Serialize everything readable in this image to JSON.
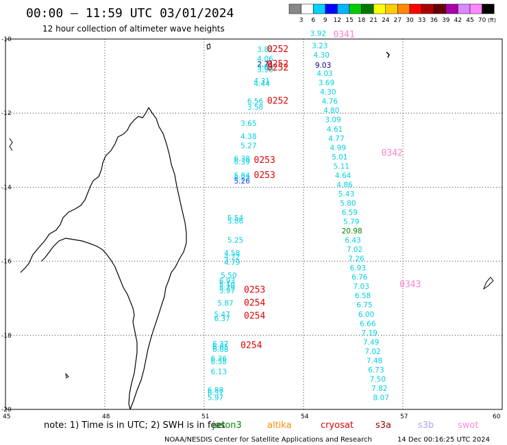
{
  "header": {
    "title": "00:00 – 11:59 UTC 03/01/2024",
    "subtitle": "12 hour collection of altimeter wave heights",
    "units": "(ft)"
  },
  "scale": {
    "labels": [
      "3",
      "6",
      "9",
      "12",
      "15",
      "18",
      "21",
      "24",
      "27",
      "30",
      "33",
      "36",
      "39",
      "42",
      "45",
      "70"
    ],
    "colors": [
      "#888888",
      "#ffffff",
      "#00d2ff",
      "#0000ff",
      "#00b4ff",
      "#00cc00",
      "#007700",
      "#ffff00",
      "#ffcc00",
      "#ff8800",
      "#ff0000",
      "#aa0000",
      "#660000",
      "#aa00aa",
      "#dd88ff",
      "#ff88ff",
      "#000000"
    ]
  },
  "map": {
    "lat_labels": [
      "-10",
      "-12",
      "-14",
      "-16",
      "-18",
      "-20"
    ],
    "lon_labels": [
      "45",
      "48",
      "51",
      "54",
      "57",
      "60"
    ],
    "lat_range": [
      -20,
      -10
    ],
    "lon_range": [
      45,
      60
    ],
    "grid": "dotted"
  },
  "passes": [
    {
      "id": "0252",
      "color": "#e00000",
      "lon": 52.9,
      "lat": -10.35
    },
    {
      "id": "0252",
      "color": "#e00000",
      "lon": 52.9,
      "lat": -10.75
    },
    {
      "id": "0252",
      "color": "#e00000",
      "lon": 52.9,
      "lat": -10.85
    },
    {
      "id": "0252",
      "color": "#e00000",
      "lon": 52.9,
      "lat": -11.75
    },
    {
      "id": "0253",
      "color": "#e00000",
      "lon": 52.5,
      "lat": -13.35
    },
    {
      "id": "0253",
      "color": "#e00000",
      "lon": 52.5,
      "lat": -13.75
    },
    {
      "id": "0253",
      "color": "#e00000",
      "lon": 52.2,
      "lat": -16.85
    },
    {
      "id": "0254",
      "color": "#e00000",
      "lon": 52.2,
      "lat": -17.2
    },
    {
      "id": "0254",
      "color": "#e00000",
      "lon": 52.2,
      "lat": -17.55
    },
    {
      "id": "0254",
      "color": "#e00000",
      "lon": 52.1,
      "lat": -18.35
    },
    {
      "id": "0341",
      "color": "#ff80cc",
      "lon": 54.9,
      "lat": -9.95
    },
    {
      "id": "0342",
      "color": "#ff80cc",
      "lon": 56.35,
      "lat": -13.15
    },
    {
      "id": "0343",
      "color": "#ff80cc",
      "lon": 56.9,
      "lat": -16.7
    }
  ],
  "obs_left": [
    {
      "v": "3.82",
      "lon": 52.6,
      "lat": -10.35
    },
    {
      "v": "4.06",
      "lon": 52.6,
      "lat": -10.6
    },
    {
      "v": "2.71",
      "lon": 52.6,
      "lat": -10.75,
      "c": "#000080"
    },
    {
      "v": "3.09",
      "lon": 52.6,
      "lat": -10.82
    },
    {
      "v": "3.90",
      "lon": 52.6,
      "lat": -10.9
    },
    {
      "v": "4.31",
      "lon": 52.5,
      "lat": -11.2
    },
    {
      "v": "4.44",
      "lon": 52.5,
      "lat": -11.28
    },
    {
      "v": "6.56",
      "lon": 52.3,
      "lat": -11.75
    },
    {
      "v": "3.58",
      "lon": 52.3,
      "lat": -11.9
    },
    {
      "v": "3.65",
      "lon": 52.1,
      "lat": -12.35
    },
    {
      "v": "4.38",
      "lon": 52.1,
      "lat": -12.7
    },
    {
      "v": "5.27",
      "lon": 52.1,
      "lat": -12.95
    },
    {
      "v": "6.38",
      "lon": 51.9,
      "lat": -13.3
    },
    {
      "v": "6.39",
      "lon": 51.9,
      "lat": -13.38
    },
    {
      "v": "5.84",
      "lon": 51.9,
      "lat": -13.75
    },
    {
      "v": "5.23",
      "lon": 51.9,
      "lat": -13.82
    },
    {
      "v": "5.26",
      "lon": 51.9,
      "lat": -13.9,
      "c": "#1040ff"
    },
    {
      "v": "5.54",
      "lon": 51.7,
      "lat": -14.9
    },
    {
      "v": "5.86",
      "lon": 51.7,
      "lat": -14.98
    },
    {
      "v": "5.25",
      "lon": 51.7,
      "lat": -15.5
    },
    {
      "v": "4.58",
      "lon": 51.6,
      "lat": -15.85
    },
    {
      "v": "4.72",
      "lon": 51.6,
      "lat": -15.95
    },
    {
      "v": "4.79",
      "lon": 51.6,
      "lat": -16.1
    },
    {
      "v": "5.50",
      "lon": 51.5,
      "lat": -16.45
    },
    {
      "v": "6.93",
      "lon": 51.45,
      "lat": -16.6
    },
    {
      "v": "5.10",
      "lon": 51.45,
      "lat": -16.7
    },
    {
      "v": "5.79",
      "lon": 51.45,
      "lat": -16.78
    },
    {
      "v": "5.97",
      "lon": 51.45,
      "lat": -16.87
    },
    {
      "v": "5.87",
      "lon": 51.4,
      "lat": -17.2
    },
    {
      "v": "5.47",
      "lon": 51.3,
      "lat": -17.5
    },
    {
      "v": "6.37",
      "lon": 51.3,
      "lat": -17.62
    },
    {
      "v": "6.37",
      "lon": 51.25,
      "lat": -18.3
    },
    {
      "v": "6.05",
      "lon": 51.25,
      "lat": -18.38
    },
    {
      "v": "6.08",
      "lon": 51.25,
      "lat": -18.45
    },
    {
      "v": "6.36",
      "lon": 51.2,
      "lat": -18.7
    },
    {
      "v": "6.58",
      "lon": 51.2,
      "lat": -18.78
    },
    {
      "v": "6.13",
      "lon": 51.2,
      "lat": -19.05
    },
    {
      "v": "6.88",
      "lon": 51.1,
      "lat": -19.55
    },
    {
      "v": "6.37",
      "lon": 51.1,
      "lat": -19.62
    },
    {
      "v": "5.97",
      "lon": 51.1,
      "lat": -19.75
    }
  ],
  "obs_right": [
    {
      "v": "3.92",
      "lon": 54.2,
      "lat": -9.92
    },
    {
      "v": "3.23",
      "lon": 54.25,
      "lat": -10.25
    },
    {
      "v": "4.30",
      "lon": 54.3,
      "lat": -10.5
    },
    {
      "v": "9.03",
      "lon": 54.35,
      "lat": -10.78,
      "c": "#000080"
    },
    {
      "v": "4.03",
      "lon": 54.4,
      "lat": -11.0
    },
    {
      "v": "3.69",
      "lon": 54.45,
      "lat": -11.25
    },
    {
      "v": "4.30",
      "lon": 54.5,
      "lat": -11.5
    },
    {
      "v": "4.76",
      "lon": 54.55,
      "lat": -11.75
    },
    {
      "v": "4.80",
      "lon": 54.6,
      "lat": -12.0
    },
    {
      "v": "3.09",
      "lon": 54.65,
      "lat": -12.25
    },
    {
      "v": "4.61",
      "lon": 54.7,
      "lat": -12.5
    },
    {
      "v": "4.77",
      "lon": 54.75,
      "lat": -12.75
    },
    {
      "v": "4.99",
      "lon": 54.8,
      "lat": -13.0
    },
    {
      "v": "5.01",
      "lon": 54.85,
      "lat": -13.25
    },
    {
      "v": "5.11",
      "lon": 54.9,
      "lat": -13.5
    },
    {
      "v": "4.64",
      "lon": 54.95,
      "lat": -13.75
    },
    {
      "v": "4.86",
      "lon": 55.0,
      "lat": -14.0
    },
    {
      "v": "5.43",
      "lon": 55.05,
      "lat": -14.25
    },
    {
      "v": "5.80",
      "lon": 55.1,
      "lat": -14.5
    },
    {
      "v": "6.59",
      "lon": 55.15,
      "lat": -14.75
    },
    {
      "v": "5.79",
      "lon": 55.2,
      "lat": -15.0
    },
    {
      "v": "20.98",
      "lon": 55.15,
      "lat": -15.25,
      "c": "#008800"
    },
    {
      "v": "6.43",
      "lon": 55.25,
      "lat": -15.5
    },
    {
      "v": "7.02",
      "lon": 55.3,
      "lat": -15.75
    },
    {
      "v": "7.26",
      "lon": 55.35,
      "lat": -16.0
    },
    {
      "v": "6.93",
      "lon": 55.4,
      "lat": -16.25
    },
    {
      "v": "6.76",
      "lon": 55.45,
      "lat": -16.5
    },
    {
      "v": "7.03",
      "lon": 55.5,
      "lat": -16.75
    },
    {
      "v": "6.58",
      "lon": 55.55,
      "lat": -17.0
    },
    {
      "v": "6.75",
      "lon": 55.6,
      "lat": -17.25
    },
    {
      "v": "6.00",
      "lon": 55.65,
      "lat": -17.5
    },
    {
      "v": "6.66",
      "lon": 55.7,
      "lat": -17.75
    },
    {
      "v": "7.19",
      "lon": 55.75,
      "lat": -18.0
    },
    {
      "v": "7.49",
      "lon": 55.8,
      "lat": -18.25
    },
    {
      "v": "7.02",
      "lon": 55.85,
      "lat": -18.5
    },
    {
      "v": "7.48",
      "lon": 55.9,
      "lat": -18.75
    },
    {
      "v": "6.73",
      "lon": 55.95,
      "lat": -19.0
    },
    {
      "v": "7.50",
      "lon": 56.0,
      "lat": -19.25
    },
    {
      "v": "7.82",
      "lon": 56.05,
      "lat": -19.5
    },
    {
      "v": "8.07",
      "lon": 56.1,
      "lat": -19.75
    }
  ],
  "footer": {
    "note": "note: 1) Time is in UTC; 2) SWH is in feet",
    "source": "NOAA/NESDIS Center for Satellite Applications and Research",
    "timestamp": "14 Dec 00:16:25 UTC 2024",
    "legend": [
      {
        "label": "jason3",
        "color": "#008800"
      },
      {
        "label": "altika",
        "color": "#ff8800"
      },
      {
        "label": "cryosat",
        "color": "#e00000"
      },
      {
        "label": "s3a",
        "color": "#990000"
      },
      {
        "label": "s3b",
        "color": "#b0a0ff"
      },
      {
        "label": "swot",
        "color": "#ff88dd"
      }
    ]
  }
}
